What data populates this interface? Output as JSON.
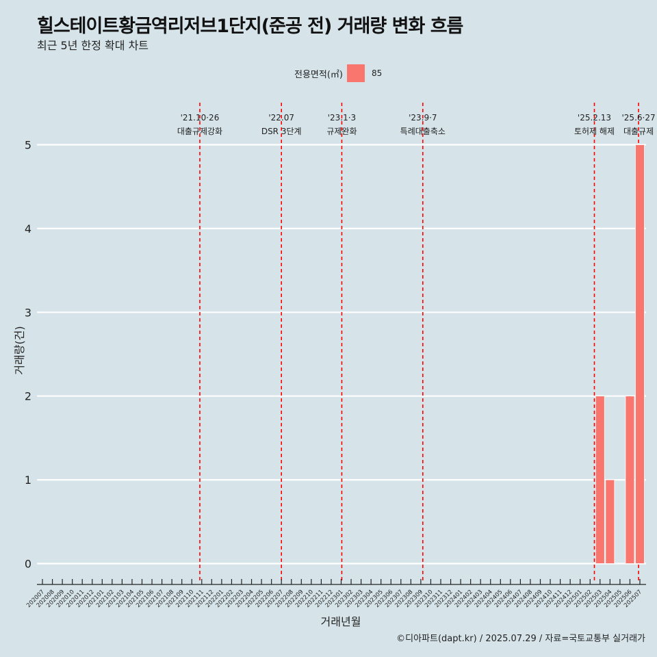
{
  "chart_data": {
    "type": "bar",
    "title": "힐스테이트황금역리저브1단지(준공 전) 거래량 변화 흐름",
    "subtitle": "최근 5년 한정 확대 차트",
    "xlabel": "거래년월",
    "ylabel": "거래량(건)",
    "ylim": [
      0,
      5
    ],
    "y_ticks": [
      "0",
      "1",
      "2",
      "3",
      "4",
      "5"
    ],
    "grid": true,
    "legend": {
      "title": "전용면적(㎡)",
      "position": "top",
      "entries": [
        "85"
      ]
    },
    "bar_color": "#f8766d",
    "categories": [
      "202007",
      "202008",
      "202009",
      "202010",
      "202011",
      "202012",
      "202101",
      "202102",
      "202103",
      "202104",
      "202105",
      "202106",
      "202107",
      "202108",
      "202109",
      "202110",
      "202111",
      "202112",
      "202201",
      "202202",
      "202203",
      "202204",
      "202205",
      "202206",
      "202207",
      "202208",
      "202209",
      "202210",
      "202211",
      "202212",
      "202301",
      "202302",
      "202303",
      "202304",
      "202305",
      "202306",
      "202307",
      "202308",
      "202309",
      "202310",
      "202311",
      "202312",
      "202401",
      "202402",
      "202403",
      "202404",
      "202405",
      "202406",
      "202407",
      "202408",
      "202409",
      "202410",
      "202411",
      "202412",
      "202501",
      "202502",
      "202503",
      "202504",
      "202505",
      "202506",
      "202507"
    ],
    "series": [
      {
        "name": "85",
        "values": [
          0,
          0,
          0,
          0,
          0,
          0,
          0,
          0,
          0,
          0,
          0,
          0,
          0,
          0,
          0,
          0,
          0,
          0,
          0,
          0,
          0,
          0,
          0,
          0,
          0,
          0,
          0,
          0,
          0,
          0,
          0,
          0,
          0,
          0,
          0,
          0,
          0,
          0,
          0,
          0,
          0,
          0,
          0,
          0,
          0,
          0,
          0,
          0,
          0,
          0,
          0,
          0,
          0,
          0,
          0,
          0,
          2,
          1,
          0,
          2,
          5
        ]
      }
    ],
    "annotations": [
      {
        "x": "2021-10-26",
        "date": "'21.10·26",
        "label": "대출규제강화",
        "color": "#ff0000"
      },
      {
        "x": "2022-07-01",
        "date": "'22.07",
        "label": "DSR 3단계",
        "color": "#ff0000"
      },
      {
        "x": "2023-01-03",
        "date": "'23.1·3",
        "label": "규제완화",
        "color": "#ff0000"
      },
      {
        "x": "2023-09-07",
        "date": "'23.9·7",
        "label": "특례대출축소",
        "color": "#ff0000"
      },
      {
        "x": "2025-02-13",
        "date": "'25.2.13",
        "label": "토허제 해제",
        "color": "#ff0000"
      },
      {
        "x": "2025-06-27",
        "date": "'25.6·27",
        "label": "대출규제",
        "color": "#ff0000"
      }
    ]
  },
  "caption": "©디아파트(dapt.kr) / 2025.07.29 / 자료=국토교통부 실거래가"
}
